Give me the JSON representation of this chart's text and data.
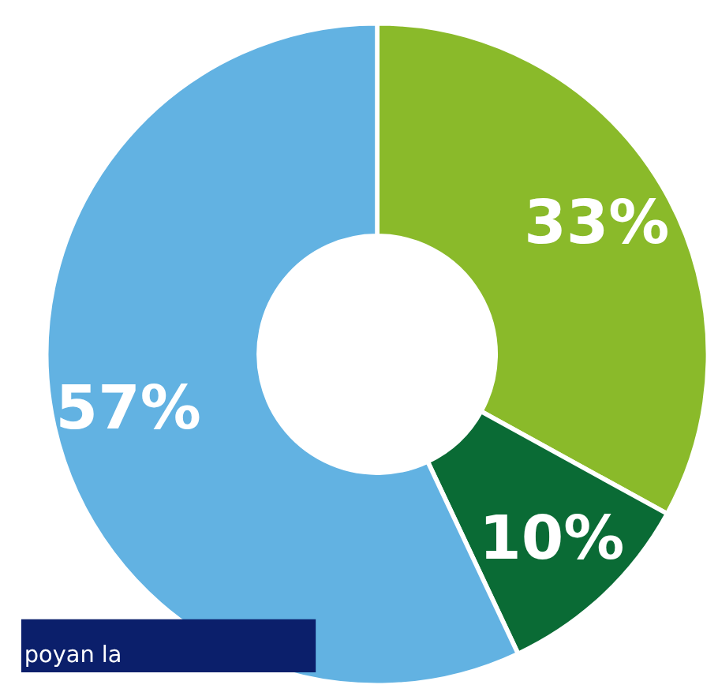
{
  "chart_data": {
    "type": "donut",
    "categories": [
      null,
      null,
      null
    ],
    "values": [
      33,
      10,
      57
    ],
    "colors": [
      "#8aba2a",
      "#0a6b35",
      "#62b2e2"
    ],
    "value_labels": [
      "33%",
      "10%",
      "57%"
    ],
    "annotations": [
      "poyan la"
    ],
    "legend": false
  }
}
